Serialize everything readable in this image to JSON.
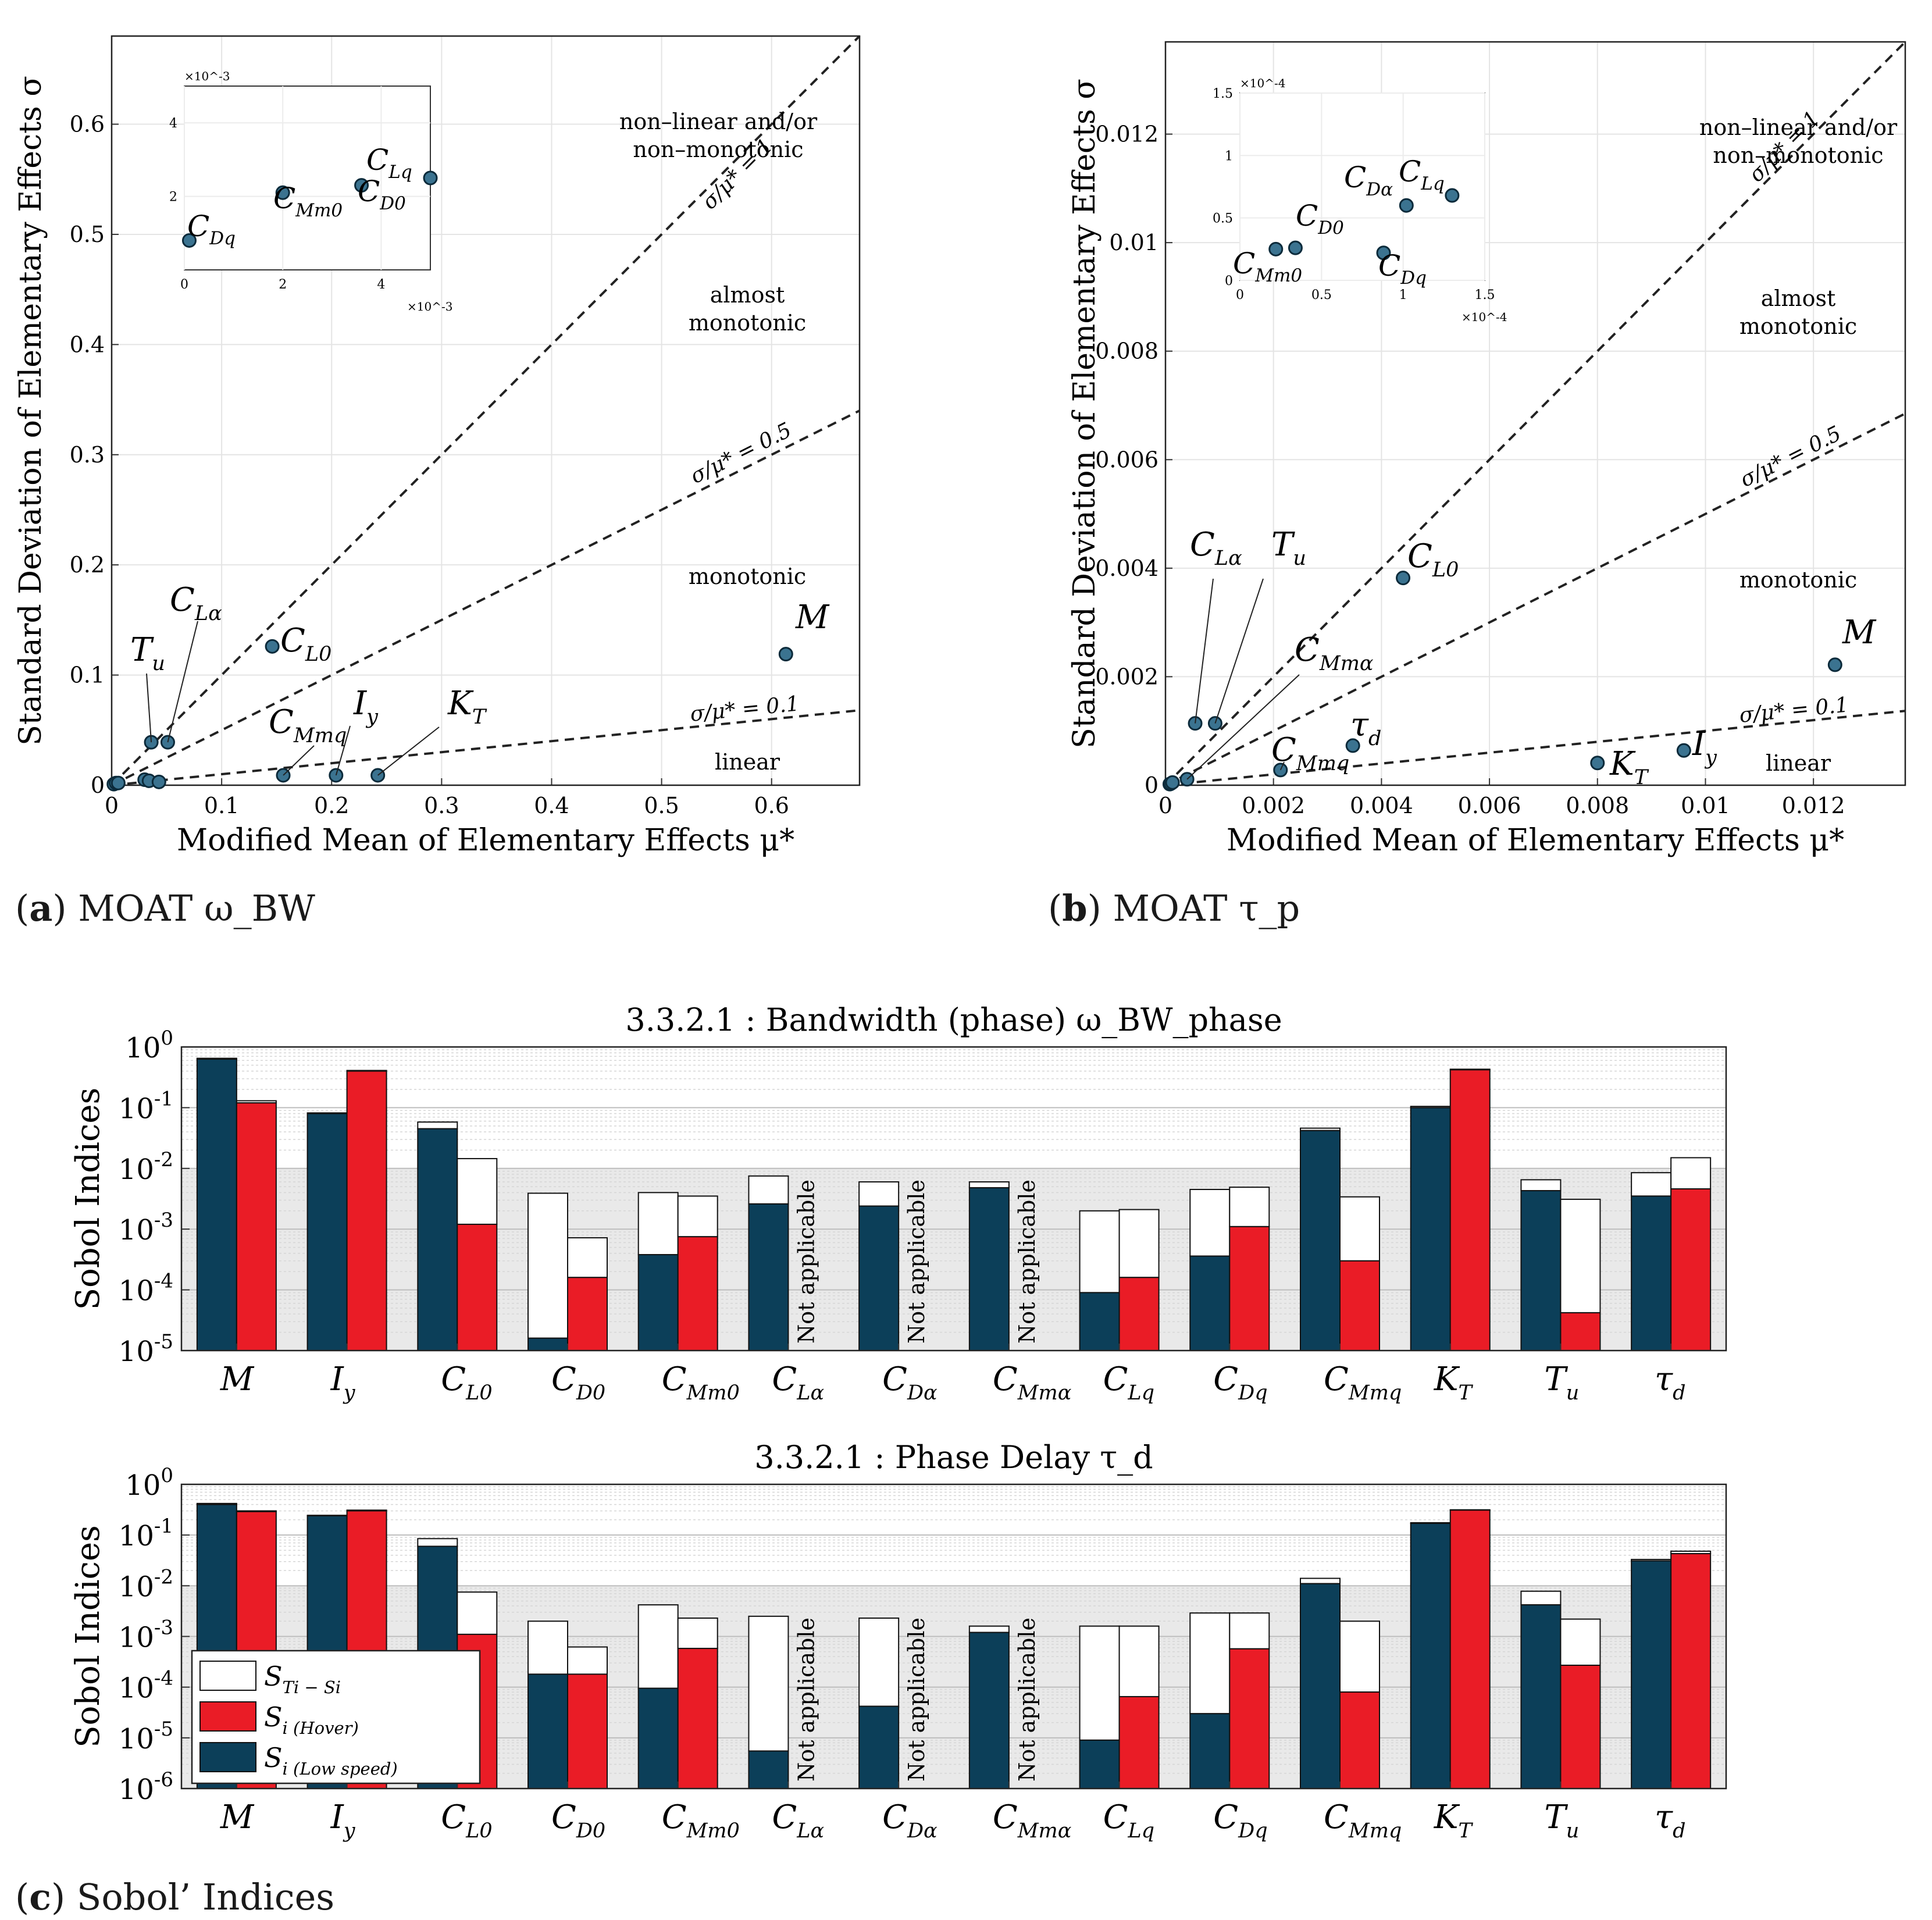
{
  "captions": {
    "a": {
      "letter": "a",
      "text": "MOAT ω_BW"
    },
    "b": {
      "letter": "b",
      "text": "MOAT τ_p"
    },
    "c": {
      "letter": "c",
      "text": "Sobol’ Indices"
    }
  },
  "chart_data": [
    {
      "id": "moat_bw",
      "type": "scatter",
      "xlabel": "Modified Mean of Elementary Effects μ*",
      "ylabel": "Standard Deviation of Elementary Effects σ",
      "xlim": [
        0,
        0.68
      ],
      "ylim": [
        0,
        0.68
      ],
      "xticks": [
        0,
        0.1,
        0.2,
        0.3,
        0.4,
        0.5,
        0.6
      ],
      "yticks": [
        0,
        0.1,
        0.2,
        0.3,
        0.4,
        0.5,
        0.6
      ],
      "reference_lines": [
        {
          "ratio": 1,
          "label": "σ/μ* = 1"
        },
        {
          "ratio": 0.5,
          "label": "σ/μ* = 0.5"
        },
        {
          "ratio": 0.1,
          "label": "σ/μ* = 0.1"
        }
      ],
      "regions": [
        "non–linear and/or",
        "non–monotonic",
        "almost",
        "monotonic",
        "monotonic",
        "linear"
      ],
      "points": [
        {
          "x": 0.613,
          "y": 0.119,
          "label": "M"
        },
        {
          "x": 0.204,
          "y": 0.009,
          "label": "I_y"
        },
        {
          "x": 0.146,
          "y": 0.126,
          "label": "C_L0"
        },
        {
          "x": 0.051,
          "y": 0.039,
          "label": "C_Lα"
        },
        {
          "x": 0.036,
          "y": 0.039,
          "label": "T_u"
        },
        {
          "x": 0.242,
          "y": 0.009,
          "label": "K_T"
        },
        {
          "x": 0.156,
          "y": 0.009,
          "label": "C_Mmq"
        },
        {
          "x": 0.03,
          "y": 0.005,
          "label": ""
        },
        {
          "x": 0.034,
          "y": 0.004,
          "label": ""
        },
        {
          "x": 0.043,
          "y": 0.003,
          "label": ""
        },
        {
          "x": 0.002,
          "y": 0.001,
          "label": ""
        },
        {
          "x": 0.004,
          "y": 0.002,
          "label": ""
        },
        {
          "x": 0.006,
          "y": 0.002,
          "label": ""
        }
      ],
      "inset": {
        "scale": "×10^-3",
        "xlim": [
          0,
          5
        ],
        "ylim": [
          0,
          5
        ],
        "xticks": [
          0,
          2,
          4
        ],
        "yticks": [
          2,
          4
        ],
        "points": [
          {
            "x": 0.1,
            "y": 0.8,
            "label": "C_Dq"
          },
          {
            "x": 2.0,
            "y": 2.1,
            "label": "C_Mm0"
          },
          {
            "x": 3.6,
            "y": 2.3,
            "label": "C_D0"
          },
          {
            "x": 5.0,
            "y": 2.5,
            "label": "C_Lq"
          }
        ]
      }
    },
    {
      "id": "moat_tau",
      "type": "scatter",
      "xlabel": "Modified Mean of Elementary Effects μ*",
      "ylabel": "Standard Deviation of Elementary Effects σ",
      "xlim": [
        0,
        0.0137
      ],
      "ylim": [
        0,
        0.0137
      ],
      "xticks": [
        0,
        0.002,
        0.004,
        0.006,
        0.008,
        0.01,
        0.012
      ],
      "yticks": [
        0,
        0.002,
        0.004,
        0.006,
        0.008,
        0.01,
        0.012
      ],
      "reference_lines": [
        {
          "ratio": 1,
          "label": "σ/μ* = 1"
        },
        {
          "ratio": 0.5,
          "label": "σ/μ* = 0.5"
        },
        {
          "ratio": 0.1,
          "label": "σ/μ* = 0.1"
        }
      ],
      "regions": [
        "non–linear and/or",
        "non–monotonic",
        "almost",
        "monotonic",
        "monotonic",
        "linear"
      ],
      "points": [
        {
          "x": 0.0124,
          "y": 0.00222,
          "label": "M"
        },
        {
          "x": 0.0096,
          "y": 0.00064,
          "label": "I_y"
        },
        {
          "x": 0.008,
          "y": 0.00041,
          "label": "K_T"
        },
        {
          "x": 0.0044,
          "y": 0.00382,
          "label": "C_L0"
        },
        {
          "x": 0.00347,
          "y": 0.00073,
          "label": "τ_d"
        },
        {
          "x": 0.00213,
          "y": 0.00028,
          "label": "C_Mmq"
        },
        {
          "x": 0.00055,
          "y": 0.00114,
          "label": "C_Lα"
        },
        {
          "x": 0.00092,
          "y": 0.00114,
          "label": "T_u"
        },
        {
          "x": 0.0004,
          "y": 0.00011,
          "label": "C_Mmα"
        },
        {
          "x": 8e-05,
          "y": 2e-05,
          "label": ""
        },
        {
          "x": 0.0001,
          "y": 3e-05,
          "label": ""
        },
        {
          "x": 0.00013,
          "y": 5e-05,
          "label": ""
        }
      ],
      "inset": {
        "scale": "×10^-4",
        "xlim": [
          0,
          1.5
        ],
        "ylim": [
          0,
          1.5
        ],
        "xticks": [
          0,
          0.5,
          1,
          1.5
        ],
        "yticks": [
          0,
          0.5,
          1,
          1.5
        ],
        "points": [
          {
            "x": 0.22,
            "y": 0.25,
            "label": "C_Mm0"
          },
          {
            "x": 0.34,
            "y": 0.26,
            "label": "C_D0"
          },
          {
            "x": 1.02,
            "y": 0.6,
            "label": "C_Dα"
          },
          {
            "x": 1.3,
            "y": 0.68,
            "label": "C_Lq"
          },
          {
            "x": 0.88,
            "y": 0.22,
            "label": "C_Dq"
          }
        ]
      }
    },
    {
      "id": "sobol_bw",
      "type": "bar",
      "title": "3.3.2.1 :  Bandwidth (phase) ω_BW_phase",
      "ylabel": "Sobol Indices",
      "scale": "log",
      "ylim_exp": [
        -5,
        0
      ],
      "categories": [
        "M",
        "I_y",
        "C_L0",
        "C_D0",
        "C_Mm0",
        "C_Lα",
        "C_Dα",
        "C_Mmα",
        "C_Lq",
        "C_Dq",
        "C_Mmq",
        "K_T",
        "T_u",
        "τ_d"
      ],
      "series": [
        {
          "name": "S_i (Low speed)",
          "Si": [
            0.63,
            0.08,
            0.045,
            1.6e-05,
            0.00038,
            0.0026,
            0.0024,
            0.0048,
            9e-05,
            0.00036,
            0.042,
            0.1,
            0.0043,
            0.0035
          ],
          "ST": [
            0.65,
            0.082,
            0.058,
            0.0039,
            0.004,
            0.0075,
            0.006,
            0.006,
            0.002,
            0.0045,
            0.046,
            0.105,
            0.0065,
            0.0085
          ]
        },
        {
          "name": "S_i (Hover)",
          "Si": [
            0.12,
            0.4,
            0.0012,
            0.00016,
            0.00075,
            null,
            null,
            null,
            0.00016,
            0.0011,
            0.0003,
            0.42,
            4.2e-05,
            0.0046
          ],
          "ST": [
            0.13,
            0.41,
            0.0145,
            0.00072,
            0.0035,
            null,
            null,
            null,
            0.0021,
            0.0049,
            0.0034,
            0.43,
            0.0031,
            0.015
          ]
        }
      ],
      "not_applicable": "Not applicable"
    },
    {
      "id": "sobol_tau",
      "type": "bar",
      "title": "3.3.2.1 :  Phase Delay τ_d",
      "ylabel": "Sobol Indices",
      "scale": "log",
      "ylim_exp": [
        -6,
        0
      ],
      "categories": [
        "M",
        "I_y",
        "C_L0",
        "C_D0",
        "C_Mm0",
        "C_Lα",
        "C_Dα",
        "C_Mmα",
        "C_Lq",
        "C_Dq",
        "C_Mmq",
        "K_T",
        "T_u",
        "τ_d"
      ],
      "series": [
        {
          "name": "S_i (Low speed)",
          "Si": [
            0.4,
            0.24,
            0.06,
            0.00018,
            9.5e-05,
            5.5e-06,
            4.2e-05,
            0.0012,
            9e-06,
            3e-05,
            0.011,
            0.17,
            0.0042,
            0.031
          ],
          "ST": [
            0.42,
            0.245,
            0.085,
            0.002,
            0.0042,
            0.0025,
            0.0023,
            0.0016,
            0.0016,
            0.0029,
            0.014,
            0.175,
            0.0078,
            0.033
          ]
        },
        {
          "name": "S_i (Hover)",
          "Si": [
            0.29,
            0.3,
            0.0011,
            0.00018,
            0.00058,
            null,
            null,
            null,
            6.5e-05,
            0.00057,
            8e-05,
            0.31,
            0.00027,
            0.043
          ],
          "ST": [
            0.3,
            0.31,
            0.0075,
            0.00062,
            0.0023,
            null,
            null,
            null,
            0.0016,
            0.0029,
            0.002,
            0.315,
            0.0022,
            0.048
          ]
        }
      ],
      "not_applicable": "Not applicable",
      "legend": [
        "S_Ti − S_i",
        "S_i (Hover)",
        "S_i (Low speed)"
      ]
    }
  ],
  "colors": {
    "low_speed": "#0c3f59",
    "hover": "#ea1c26",
    "interaction": "#ffffff",
    "marker": "#3b7390",
    "shade": "#e9e9e9"
  }
}
